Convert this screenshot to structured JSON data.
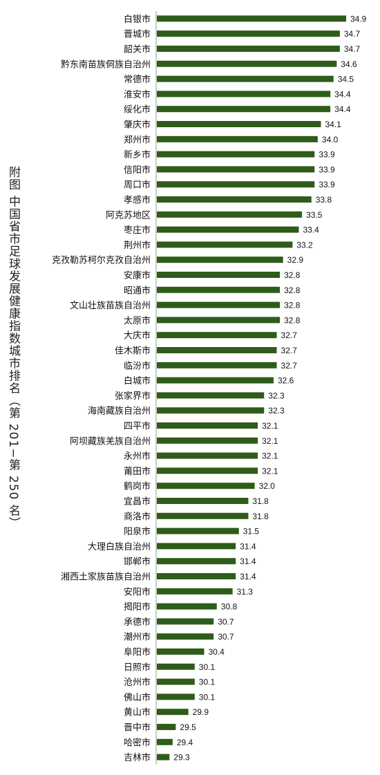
{
  "side_title": "附图   中国省市足球发展健康指数城市排名（第 201−第 250 名）",
  "chart_data": {
    "type": "bar",
    "orientation": "horizontal",
    "title": "附图   中国省市足球发展健康指数城市排名（第 201−第 250 名）",
    "bar_color": "#2e5c1a",
    "xlim": [
      0,
      35
    ],
    "grid": false,
    "categories": [
      "白银市",
      "晋城市",
      "韶关市",
      "黔东南苗族侗族自治州",
      "常德市",
      "淮安市",
      "绥化市",
      "肇庆市",
      "郑州市",
      "新乡市",
      "信阳市",
      "周口市",
      "孝感市",
      "阿克苏地区",
      "枣庄市",
      "荆州市",
      "克孜勒苏柯尔克孜自治州",
      "安康市",
      "昭通市",
      "文山壮族苗族自治州",
      "太原市",
      "大庆市",
      "佳木斯市",
      "临汾市",
      "白城市",
      "张家界市",
      "海南藏族自治州",
      "四平市",
      "阿坝藏族羌族自治州",
      "永州市",
      "莆田市",
      "鹤岗市",
      "宜昌市",
      "商洛市",
      "阳泉市",
      "大理白族自治州",
      "邯郸市",
      "湘西土家族苗族自治州",
      "安阳市",
      "揭阳市",
      "承德市",
      "潮州市",
      "阜阳市",
      "日照市",
      "沧州市",
      "佛山市",
      "黄山市",
      "晋中市",
      "哈密市",
      "吉林市"
    ],
    "values": [
      34.9,
      34.7,
      34.7,
      34.6,
      34.5,
      34.4,
      34.4,
      34.1,
      34.0,
      33.9,
      33.9,
      33.9,
      33.8,
      33.5,
      33.4,
      33.2,
      32.9,
      32.8,
      32.8,
      32.8,
      32.8,
      32.7,
      32.7,
      32.7,
      32.6,
      32.3,
      32.3,
      32.1,
      32.1,
      32.1,
      32.1,
      32.0,
      31.8,
      31.8,
      31.5,
      31.4,
      31.4,
      31.4,
      31.3,
      30.8,
      30.7,
      30.7,
      30.4,
      30.1,
      30.1,
      30.1,
      29.9,
      29.5,
      29.4,
      29.3
    ],
    "value_labels": [
      "34.9",
      "34.7",
      "34.7",
      "34.6",
      "34.5",
      "34.4",
      "34.4",
      "34.1",
      "34.0",
      "33.9",
      "33.9",
      "33.9",
      "33.8",
      "33.5",
      "33.4",
      "33.2",
      "32.9",
      "32.8",
      "32.8",
      "32.8",
      "32.8",
      "32.7",
      "32.7",
      "32.7",
      "32.6",
      "32.3",
      "32.3",
      "32.1",
      "32.1",
      "32.1",
      "32.1",
      "32.0",
      "31.8",
      "31.8",
      "31.5",
      "31.4",
      "31.4",
      "31.4",
      "31.3",
      "30.8",
      "30.7",
      "30.7",
      "30.4",
      "30.1",
      "30.1",
      "30.1",
      "29.9",
      "29.5",
      "29.4",
      "29.3"
    ]
  }
}
